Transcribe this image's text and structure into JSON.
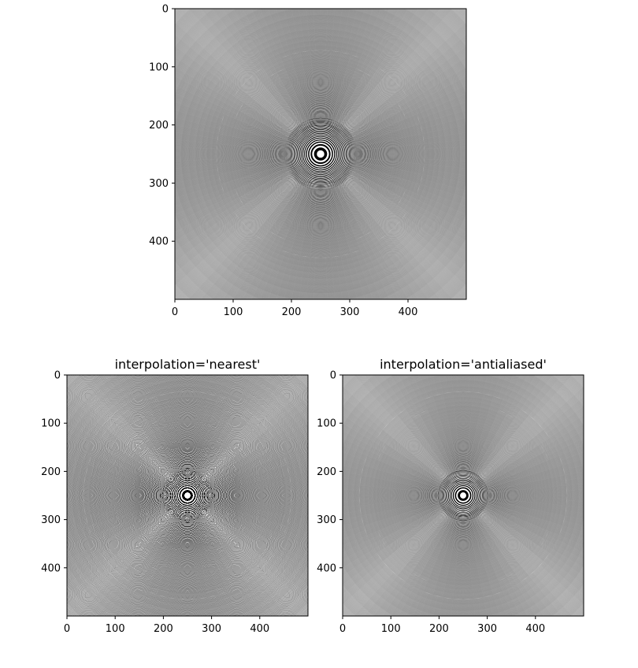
{
  "chart_data": [
    {
      "type": "heatmap",
      "title": "",
      "image": "concentric rings (radial chirp pattern), grayscale",
      "colormap": "gray",
      "xlim": [
        0,
        500
      ],
      "ylim": [
        500,
        0
      ],
      "xticks": [
        "0",
        "100",
        "200",
        "300",
        "400"
      ],
      "yticks": [
        "0",
        "100",
        "200",
        "300",
        "400"
      ],
      "xlabel": "",
      "ylabel": ""
    },
    {
      "type": "heatmap",
      "title": "interpolation='nearest'",
      "image": "concentric rings downsampled with nearest interpolation (aliasing / moire visible)",
      "colormap": "gray",
      "xlim": [
        0,
        500
      ],
      "ylim": [
        500,
        0
      ],
      "xticks": [
        "0",
        "100",
        "200",
        "300",
        "400"
      ],
      "yticks": [
        "0",
        "100",
        "200",
        "300",
        "400"
      ],
      "xlabel": "",
      "ylabel": ""
    },
    {
      "type": "heatmap",
      "title": "interpolation='antialiased'",
      "image": "concentric rings downsampled with antialiased interpolation (smooth)",
      "colormap": "gray",
      "xlim": [
        0,
        500
      ],
      "ylim": [
        500,
        0
      ],
      "xticks": [
        "0",
        "100",
        "200",
        "300",
        "400"
      ],
      "yticks": [
        "0",
        "100",
        "200",
        "300",
        "400"
      ],
      "xlabel": "",
      "ylabel": ""
    }
  ]
}
